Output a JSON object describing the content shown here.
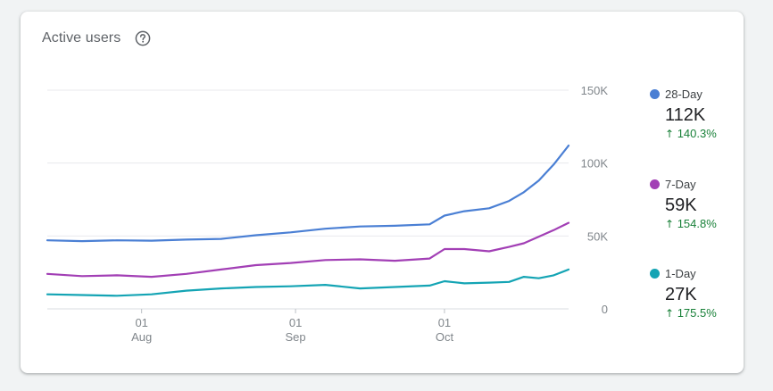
{
  "card": {
    "title": "Active users",
    "help_icon": "help-circle-icon"
  },
  "legend": [
    {
      "name": "28-Day",
      "value": "112K",
      "change": "140.3%",
      "arrow": "↑",
      "color": "#4a7fd4"
    },
    {
      "name": "7-Day",
      "value": "59K",
      "change": "154.8%",
      "arrow": "↑",
      "color": "#a23fb5"
    },
    {
      "name": "1-Day",
      "value": "27K",
      "change": "175.5%",
      "arrow": "↑",
      "color": "#14a4b4"
    }
  ],
  "chart_data": {
    "type": "line",
    "ylim": [
      0,
      150000
    ],
    "yticks": [
      {
        "value": 150000,
        "label": "150K"
      },
      {
        "value": 100000,
        "label": "100K"
      },
      {
        "value": 50000,
        "label": "50K"
      },
      {
        "value": 0,
        "label": "0"
      }
    ],
    "xticks": [
      {
        "date": "2021-08-01",
        "day": "01",
        "month": "Aug"
      },
      {
        "date": "2021-09-01",
        "day": "01",
        "month": "Sep"
      },
      {
        "date": "2021-10-01",
        "day": "01",
        "month": "Oct"
      }
    ],
    "x_start": "2021-07-13",
    "x_end": "2021-10-26",
    "grid": true,
    "legend_position": "right",
    "series": [
      {
        "name": "28-Day",
        "color": "#4a7fd4",
        "points": [
          [
            "2021-07-13",
            47000
          ],
          [
            "2021-07-20",
            46500
          ],
          [
            "2021-07-27",
            47000
          ],
          [
            "2021-08-03",
            46800
          ],
          [
            "2021-08-10",
            47500
          ],
          [
            "2021-08-17",
            48000
          ],
          [
            "2021-08-24",
            50500
          ],
          [
            "2021-08-31",
            52500
          ],
          [
            "2021-09-07",
            55000
          ],
          [
            "2021-09-14",
            56500
          ],
          [
            "2021-09-21",
            57000
          ],
          [
            "2021-09-28",
            58000
          ],
          [
            "2021-10-01",
            64000
          ],
          [
            "2021-10-05",
            67000
          ],
          [
            "2021-10-10",
            69000
          ],
          [
            "2021-10-14",
            74000
          ],
          [
            "2021-10-17",
            80000
          ],
          [
            "2021-10-20",
            88000
          ],
          [
            "2021-10-23",
            99000
          ],
          [
            "2021-10-26",
            112000
          ]
        ]
      },
      {
        "name": "7-Day",
        "color": "#a23fb5",
        "points": [
          [
            "2021-07-13",
            24000
          ],
          [
            "2021-07-20",
            22500
          ],
          [
            "2021-07-27",
            23000
          ],
          [
            "2021-08-03",
            22000
          ],
          [
            "2021-08-10",
            24000
          ],
          [
            "2021-08-17",
            27000
          ],
          [
            "2021-08-24",
            30000
          ],
          [
            "2021-08-31",
            31500
          ],
          [
            "2021-09-07",
            33500
          ],
          [
            "2021-09-14",
            34000
          ],
          [
            "2021-09-21",
            33000
          ],
          [
            "2021-09-28",
            34500
          ],
          [
            "2021-10-01",
            41000
          ],
          [
            "2021-10-05",
            41000
          ],
          [
            "2021-10-10",
            39500
          ],
          [
            "2021-10-14",
            42500
          ],
          [
            "2021-10-17",
            45000
          ],
          [
            "2021-10-20",
            49500
          ],
          [
            "2021-10-23",
            54000
          ],
          [
            "2021-10-26",
            59000
          ]
        ]
      },
      {
        "name": "1-Day",
        "color": "#14a4b4",
        "points": [
          [
            "2021-07-13",
            10000
          ],
          [
            "2021-07-20",
            9500
          ],
          [
            "2021-07-27",
            9000
          ],
          [
            "2021-08-03",
            10000
          ],
          [
            "2021-08-10",
            12500
          ],
          [
            "2021-08-17",
            14000
          ],
          [
            "2021-08-24",
            15000
          ],
          [
            "2021-08-31",
            15500
          ],
          [
            "2021-09-07",
            16500
          ],
          [
            "2021-09-14",
            14000
          ],
          [
            "2021-09-21",
            15000
          ],
          [
            "2021-09-28",
            16000
          ],
          [
            "2021-10-01",
            19000
          ],
          [
            "2021-10-05",
            17500
          ],
          [
            "2021-10-10",
            18000
          ],
          [
            "2021-10-14",
            18500
          ],
          [
            "2021-10-17",
            22000
          ],
          [
            "2021-10-20",
            21000
          ],
          [
            "2021-10-23",
            23000
          ],
          [
            "2021-10-26",
            27000
          ]
        ]
      }
    ]
  }
}
